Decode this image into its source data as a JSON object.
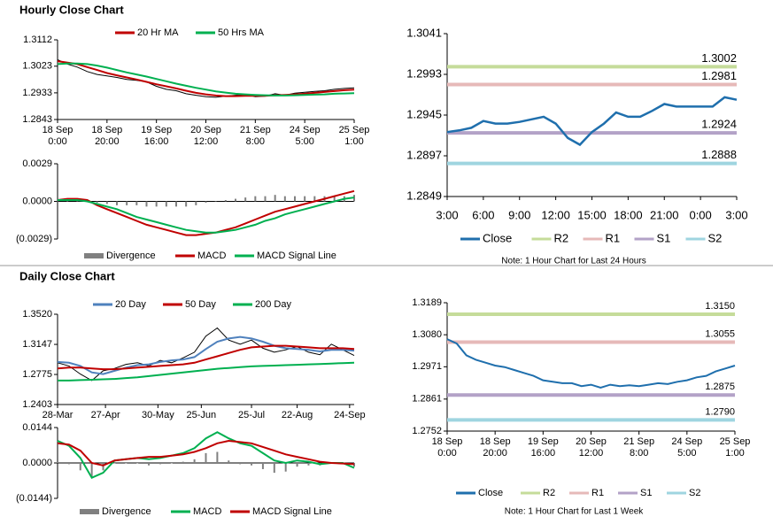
{
  "headings": [
    "Hourly Close Chart",
    "Daily Close Chart"
  ],
  "chart_data": [
    {
      "type": "line",
      "legend": "top",
      "x": [
        0,
        4,
        8,
        12,
        16,
        20,
        24,
        28,
        32,
        36,
        40,
        44,
        48,
        52,
        56,
        60,
        64,
        68,
        72,
        76,
        80,
        84,
        88,
        92,
        96,
        100,
        104,
        108,
        112,
        116,
        120
      ],
      "xlim": [
        0,
        120
      ],
      "xticks": [
        {
          "value": 0,
          "label": "18 Sep\n0:00"
        },
        {
          "value": 20,
          "label": "18 Sep\n20:00"
        },
        {
          "value": 40,
          "label": "19 Sep\n16:00"
        },
        {
          "value": 60,
          "label": "20 Sep\n12:00"
        },
        {
          "value": 80,
          "label": "21 Sep\n8:00"
        },
        {
          "value": 100,
          "label": "24 Sep\n5:00"
        },
        {
          "value": 120,
          "label": "25 Sep\n1:00"
        }
      ],
      "ylim": [
        1.2843,
        1.3112
      ],
      "yticks": [
        1.2843,
        1.2933,
        1.3023,
        1.3112
      ],
      "values": [
        1.3045,
        1.303,
        1.302,
        1.3005,
        1.2995,
        1.299,
        1.2985,
        1.2978,
        1.2975,
        1.297,
        1.2955,
        1.2945,
        1.294,
        1.293,
        1.2925,
        1.292,
        1.2918,
        1.2922,
        1.2925,
        1.2928,
        1.292,
        1.2922,
        1.293,
        1.2925,
        1.2932,
        1.2935,
        1.2938,
        1.294,
        1.2945,
        1.2948,
        1.295
      ],
      "color": "#000000",
      "series": [
        {
          "name": "20 Hr MA",
          "color": "#c00000",
          "values": [
            1.304,
            1.3035,
            1.303,
            1.302,
            1.301,
            1.3,
            1.2992,
            1.2985,
            1.2978,
            1.297,
            1.2962,
            1.2955,
            1.2948,
            1.294,
            1.2933,
            1.2928,
            1.2924,
            1.2922,
            1.2922,
            1.2923,
            1.2923,
            1.2923,
            1.2925,
            1.2926,
            1.2928,
            1.293,
            1.2933,
            1.2936,
            1.2939,
            1.2942,
            1.2944
          ]
        },
        {
          "name": "50 Hrs MA",
          "color": "#00b050",
          "values": [
            1.303,
            1.3032,
            1.3032,
            1.303,
            1.3025,
            1.3018,
            1.301,
            1.3002,
            1.2995,
            1.2988,
            1.298,
            1.2972,
            1.2964,
            1.2957,
            1.295,
            1.2944,
            1.2938,
            1.2934,
            1.293,
            1.2928,
            1.2926,
            1.2925,
            1.2924,
            1.2924,
            1.2925,
            1.2926,
            1.2927,
            1.2928,
            1.293,
            1.2931,
            1.2932
          ]
        }
      ]
    },
    {
      "type": "line",
      "legend": "bottom",
      "x": [
        0,
        4,
        8,
        12,
        16,
        20,
        24,
        28,
        32,
        36,
        40,
        44,
        48,
        52,
        56,
        60,
        64,
        68,
        72,
        76,
        80,
        84,
        88,
        92,
        96,
        100,
        104,
        108,
        112,
        116,
        120
      ],
      "xlim": [
        0,
        120
      ],
      "ylim": [
        -0.0029,
        0.0029
      ],
      "yticks": [
        {
          "value": -0.0029,
          "label": "(0.0029)"
        },
        {
          "value": 0,
          "label": "0.0000"
        },
        0.0029
      ],
      "series": [
        {
          "name": "Divergence",
          "color": "#808080",
          "style": "bar",
          "values": [
            0,
            0.0001,
            0.0001,
            0.0001,
            -0.0001,
            -0.0002,
            -0.0003,
            -0.0003,
            -0.0003,
            -0.0004,
            -0.0004,
            -0.0004,
            -0.0004,
            -0.0004,
            -0.0003,
            -0.0001,
            0,
            0.0001,
            0.0002,
            0.0003,
            0.0004,
            0.0004,
            0.0005,
            0.0004,
            0.0004,
            0.0004,
            0.0004,
            0.0004,
            0.0004,
            0.0004,
            0.0005
          ]
        },
        {
          "name": "MACD",
          "color": "#c00000",
          "values": [
            0.0001,
            0.0002,
            0.0002,
            0.0001,
            -0.0003,
            -0.0006,
            -0.0009,
            -0.0012,
            -0.0015,
            -0.0018,
            -0.002,
            -0.0022,
            -0.0024,
            -0.0026,
            -0.0026,
            -0.0025,
            -0.0024,
            -0.0022,
            -0.002,
            -0.0017,
            -0.0014,
            -0.0011,
            -0.0008,
            -0.0006,
            -0.0004,
            -0.0002,
            0.0,
            0.0002,
            0.0004,
            0.0006,
            0.0008
          ]
        },
        {
          "name": "MACD Signal Line",
          "color": "#00b050",
          "values": [
            0.0001,
            0.0001,
            0.0001,
            0.0,
            -0.0002,
            -0.0004,
            -0.0006,
            -0.0009,
            -0.0012,
            -0.0014,
            -0.0016,
            -0.0018,
            -0.002,
            -0.0022,
            -0.0023,
            -0.0024,
            -0.0024,
            -0.0023,
            -0.0022,
            -0.002,
            -0.0018,
            -0.0015,
            -0.0013,
            -0.001,
            -0.0008,
            -0.0006,
            -0.0004,
            -0.0002,
            0.0,
            0.0002,
            0.0003
          ]
        }
      ]
    },
    {
      "type": "line",
      "legend": "bottom",
      "big": true,
      "x": [
        0,
        1,
        2,
        3,
        4,
        5,
        6,
        7,
        8,
        9,
        10,
        11,
        12,
        13,
        14,
        15,
        16,
        17,
        18,
        19,
        20,
        21,
        22,
        23,
        24
      ],
      "xlim": [
        0,
        24
      ],
      "xticks": [
        {
          "value": 0,
          "label": "3:00"
        },
        {
          "value": 3,
          "label": "6:00"
        },
        {
          "value": 6,
          "label": "9:00"
        },
        {
          "value": 9,
          "label": "12:00"
        },
        {
          "value": 12,
          "label": "15:00"
        },
        {
          "value": 15,
          "label": "18:00"
        },
        {
          "value": 18,
          "label": "21:00"
        },
        {
          "value": 21,
          "label": "0:00"
        },
        {
          "value": 24,
          "label": "3:00"
        }
      ],
      "ylim": [
        1.2849,
        1.3041
      ],
      "yticks": [
        1.2849,
        1.2897,
        1.2945,
        1.2993,
        1.3041
      ],
      "series": [
        {
          "name": "Close",
          "color": "#1f6fad",
          "values": [
            1.2925,
            1.2927,
            1.293,
            1.2938,
            1.2935,
            1.2935,
            1.2937,
            1.294,
            1.2943,
            1.2935,
            1.2918,
            1.291,
            1.2925,
            1.2935,
            1.2948,
            1.2943,
            1.2943,
            1.295,
            1.2958,
            1.2955,
            1.2955,
            1.2955,
            1.2955,
            1.2966,
            1.2963
          ]
        }
      ],
      "levels": [
        {
          "name": "R2",
          "color": "#c5dc9a",
          "value": 1.3002
        },
        {
          "name": "R1",
          "color": "#e6b9b8",
          "value": 1.2981
        },
        {
          "name": "S1",
          "color": "#b3a2c7",
          "value": 1.2924
        },
        {
          "name": "S2",
          "color": "#9fd5e0",
          "value": 1.2888
        }
      ],
      "note": "Note: 1 Hour Chart for Last 24 Hours"
    },
    {
      "type": "line",
      "legend": "top",
      "x": [
        0,
        5,
        10,
        15,
        20,
        25,
        30,
        35,
        40,
        45,
        50,
        55,
        60,
        65,
        70,
        75,
        80,
        85,
        90,
        95,
        100,
        105,
        110,
        115,
        120,
        125,
        130
      ],
      "xlim": [
        0,
        130
      ],
      "xticks": [
        {
          "value": 0,
          "label": "28-Mar"
        },
        {
          "value": 21,
          "label": "27-Apr"
        },
        {
          "value": 44,
          "label": "30-May"
        },
        {
          "value": 63,
          "label": "25-Jun"
        },
        {
          "value": 85,
          "label": "25-Jul"
        },
        {
          "value": 105,
          "label": "22-Aug"
        },
        {
          "value": 128,
          "label": "24-Sep"
        }
      ],
      "ylim": [
        1.2403,
        1.352
      ],
      "yticks": [
        1.2403,
        1.2775,
        1.3147,
        {
          "value": 1.352,
          "label": "1.3520"
        }
      ],
      "values": [
        1.292,
        1.288,
        1.278,
        1.27,
        1.282,
        1.285,
        1.29,
        1.292,
        1.288,
        1.295,
        1.292,
        1.298,
        1.305,
        1.325,
        1.335,
        1.32,
        1.315,
        1.32,
        1.31,
        1.305,
        1.308,
        1.312,
        1.305,
        1.302,
        1.315,
        1.308,
        1.301
      ],
      "color": "#000000",
      "series": [
        {
          "name": "20 Day",
          "color": "#4f81bd",
          "values": [
            1.293,
            1.292,
            1.288,
            1.28,
            1.278,
            1.282,
            1.286,
            1.289,
            1.29,
            1.293,
            1.295,
            1.296,
            1.299,
            1.309,
            1.318,
            1.322,
            1.324,
            1.322,
            1.318,
            1.313,
            1.31,
            1.309,
            1.308,
            1.306,
            1.308,
            1.308,
            1.307
          ]
        },
        {
          "name": "50 Day",
          "color": "#c00000",
          "values": [
            1.285,
            1.286,
            1.286,
            1.285,
            1.284,
            1.284,
            1.285,
            1.286,
            1.287,
            1.288,
            1.289,
            1.29,
            1.292,
            1.296,
            1.3,
            1.304,
            1.308,
            1.311,
            1.312,
            1.313,
            1.313,
            1.312,
            1.311,
            1.31,
            1.31,
            1.31,
            1.309
          ]
        },
        {
          "name": "200 Day",
          "color": "#00b050",
          "values": [
            1.27,
            1.27,
            1.2705,
            1.271,
            1.2715,
            1.272,
            1.273,
            1.274,
            1.2755,
            1.277,
            1.2785,
            1.28,
            1.2815,
            1.283,
            1.2845,
            1.2855,
            1.2865,
            1.2875,
            1.288,
            1.2885,
            1.289,
            1.2895,
            1.29,
            1.2905,
            1.291,
            1.2915,
            1.292
          ]
        }
      ]
    },
    {
      "type": "line",
      "legend": "bottom",
      "x": [
        0,
        5,
        10,
        15,
        20,
        25,
        30,
        35,
        40,
        45,
        50,
        55,
        60,
        65,
        70,
        75,
        80,
        85,
        90,
        95,
        100,
        105,
        110,
        115,
        120,
        125,
        130
      ],
      "xlim": [
        0,
        130
      ],
      "ylim": [
        -0.0144,
        0.0144
      ],
      "yticks": [
        {
          "value": -0.0144,
          "label": "(0.0144)"
        },
        {
          "value": 0,
          "label": "0.0000"
        },
        0.0144
      ],
      "series": [
        {
          "name": "Divergence",
          "color": "#808080",
          "style": "bar",
          "values": [
            0.001,
            -0.0005,
            -0.003,
            -0.006,
            -0.003,
            0,
            0,
            0,
            -0.001,
            -0.0005,
            0,
            0.0005,
            0.0015,
            0.004,
            0.0045,
            0.001,
            -0.0005,
            -0.001,
            -0.0025,
            -0.004,
            -0.0035,
            -0.0015,
            -0.001,
            -0.001,
            0,
            0.0002,
            -0.0015
          ]
        },
        {
          "name": "MACD",
          "color": "#00b050",
          "values": [
            0.009,
            0.007,
            0.002,
            -0.006,
            -0.004,
            0.001,
            0.0015,
            0.002,
            0.0015,
            0.002,
            0.003,
            0.004,
            0.006,
            0.01,
            0.0125,
            0.01,
            0.008,
            0.007,
            0.004,
            0.001,
            0.0,
            0.001,
            0.0005,
            -0.0005,
            0.0,
            0.0,
            -0.002
          ]
        },
        {
          "name": "MACD Signal Line",
          "color": "#c00000",
          "values": [
            0.008,
            0.0075,
            0.005,
            0.0,
            -0.001,
            0.001,
            0.0015,
            0.002,
            0.0025,
            0.0025,
            0.003,
            0.0035,
            0.0045,
            0.006,
            0.008,
            0.009,
            0.0085,
            0.008,
            0.0065,
            0.005,
            0.0035,
            0.0025,
            0.0015,
            0.0005,
            0.0,
            -0.0002,
            -0.0005
          ]
        }
      ]
    },
    {
      "type": "line",
      "legend": "bottom",
      "x": [
        0,
        4,
        8,
        12,
        16,
        20,
        24,
        28,
        32,
        36,
        40,
        44,
        48,
        52,
        56,
        60,
        64,
        68,
        72,
        76,
        80,
        84,
        88,
        92,
        96,
        100,
        104,
        108,
        112,
        116,
        120
      ],
      "xlim": [
        0,
        120
      ],
      "xticks": [
        {
          "value": 0,
          "label": "18 Sep\n0:00"
        },
        {
          "value": 20,
          "label": "18 Sep\n20:00"
        },
        {
          "value": 40,
          "label": "19 Sep\n16:00"
        },
        {
          "value": 60,
          "label": "20 Sep\n12:00"
        },
        {
          "value": 80,
          "label": "21 Sep\n8:00"
        },
        {
          "value": 100,
          "label": "24 Sep\n5:00"
        },
        {
          "value": 120,
          "label": "25 Sep\n1:00"
        }
      ],
      "ylim": [
        1.2752,
        1.3189
      ],
      "yticks": [
        1.2752,
        1.2861,
        1.2971,
        {
          "value": 1.308,
          "label": "1.3080"
        },
        1.3189
      ],
      "series": [
        {
          "name": "Close",
          "color": "#1f6fad",
          "values": [
            1.3065,
            1.305,
            1.301,
            1.2995,
            1.2985,
            1.2975,
            1.297,
            1.296,
            1.295,
            1.294,
            1.2925,
            1.292,
            1.2915,
            1.2915,
            1.2905,
            1.291,
            1.29,
            1.291,
            1.2905,
            1.2908,
            1.2905,
            1.291,
            1.2915,
            1.2912,
            1.292,
            1.2925,
            1.2935,
            1.294,
            1.2955,
            1.2965,
            1.2975
          ]
        }
      ],
      "levels": [
        {
          "name": "R2",
          "color": "#c5dc9a",
          "value": 1.315,
          "value_label": "1.3150"
        },
        {
          "name": "R1",
          "color": "#e6b9b8",
          "value": 1.3055
        },
        {
          "name": "S1",
          "color": "#b3a2c7",
          "value": 1.2875
        },
        {
          "name": "S2",
          "color": "#9fd5e0",
          "value": 1.279,
          "value_label": "1.2790"
        }
      ],
      "note": "Note: 1 Hour Chart for Last 1 Week"
    }
  ]
}
